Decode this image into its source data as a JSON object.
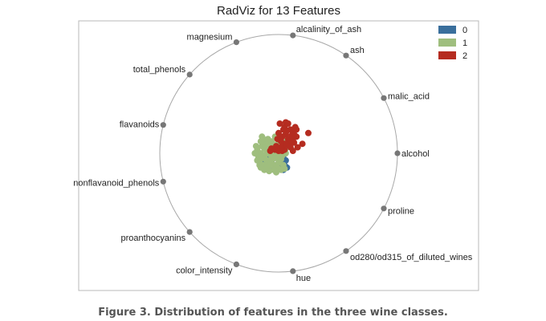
{
  "chart_data": {
    "type": "scatter",
    "title": "RadViz for 13 Features",
    "xlim": [
      -1,
      1
    ],
    "ylim": [
      -1,
      1
    ],
    "grid": false,
    "legend_placement": "top-right",
    "anchors": [
      {
        "label": "alcohol",
        "angle_deg": 0
      },
      {
        "label": "malic_acid",
        "angle_deg": 27.7
      },
      {
        "label": "ash",
        "angle_deg": 55.4
      },
      {
        "label": "alcalinity_of_ash",
        "angle_deg": 83.1
      },
      {
        "label": "magnesium",
        "angle_deg": 110.8
      },
      {
        "label": "total_phenols",
        "angle_deg": 138.5
      },
      {
        "label": "flavanoids",
        "angle_deg": 166.2
      },
      {
        "label": "nonflavanoid_phenols",
        "angle_deg": 193.8
      },
      {
        "label": "proanthocyanins",
        "angle_deg": 221.5
      },
      {
        "label": "color_intensity",
        "angle_deg": 249.2
      },
      {
        "label": "hue",
        "angle_deg": 276.9
      },
      {
        "label": "od280/od315_of_diluted_wines",
        "angle_deg": 304.6
      },
      {
        "label": "proline",
        "angle_deg": 332.3
      }
    ],
    "series": [
      {
        "name": "0",
        "color": "#3a6f9c",
        "points": [
          [
            -0.1,
            -0.05
          ],
          [
            -0.06,
            -0.08
          ],
          [
            -0.02,
            -0.1
          ],
          [
            0.02,
            -0.12
          ],
          [
            0.03,
            -0.08
          ],
          [
            0.06,
            -0.06
          ],
          [
            0.05,
            -0.1
          ],
          [
            -0.04,
            -0.12
          ],
          [
            -0.08,
            -0.02
          ],
          [
            -0.12,
            -0.06
          ],
          [
            0.0,
            -0.05
          ],
          [
            0.04,
            -0.02
          ],
          [
            -0.02,
            -0.02
          ],
          [
            0.02,
            0.02
          ],
          [
            -0.06,
            0.0
          ],
          [
            0.04,
            -0.14
          ],
          [
            0.07,
            -0.12
          ],
          [
            -0.11,
            -0.1
          ],
          [
            0.05,
            0.05
          ],
          [
            0.01,
            -0.07
          ]
        ]
      },
      {
        "name": "1",
        "color": "#9fbe7e",
        "points": [
          [
            -0.18,
            0.03
          ],
          [
            -0.15,
            0.0
          ],
          [
            -0.16,
            -0.07
          ],
          [
            -0.14,
            0.06
          ],
          [
            -0.12,
            -0.02
          ],
          [
            -0.13,
            -0.1
          ],
          [
            -0.1,
            0.02
          ],
          [
            -0.09,
            -0.08
          ],
          [
            -0.07,
            0.05
          ],
          [
            -0.05,
            -0.05
          ],
          [
            -0.04,
            -0.1
          ],
          [
            -0.02,
            0.04
          ],
          [
            0.0,
            -0.08
          ],
          [
            0.02,
            -0.05
          ],
          [
            0.03,
            0.08
          ],
          [
            -0.08,
            0.08
          ],
          [
            -0.11,
            0.1
          ],
          [
            -0.03,
            0.02
          ],
          [
            -0.06,
            -0.03
          ],
          [
            0.0,
            0.0
          ],
          [
            -0.17,
            -0.03
          ],
          [
            -0.15,
            0.1
          ],
          [
            0.01,
            0.05
          ],
          [
            -0.01,
            -0.12
          ],
          [
            -0.04,
            -0.14
          ],
          [
            -0.19,
            0.06
          ],
          [
            -0.1,
            -0.12
          ],
          [
            0.04,
            -0.1
          ],
          [
            0.06,
            0.0
          ],
          [
            -0.12,
            0.04
          ],
          [
            -0.07,
            -0.06
          ],
          [
            -0.05,
            0.08
          ],
          [
            -0.03,
            -0.04
          ],
          [
            -0.14,
            -0.04
          ],
          [
            -0.09,
            0.0
          ],
          [
            0.02,
            0.1
          ],
          [
            -0.16,
            -0.1
          ],
          [
            -0.08,
            -0.15
          ],
          [
            0.05,
            -0.13
          ],
          [
            -0.02,
            0.07
          ],
          [
            -0.06,
            0.1
          ],
          [
            -0.13,
            0.12
          ],
          [
            -0.01,
            -0.03
          ],
          [
            0.03,
            -0.02
          ],
          [
            -0.11,
            -0.05
          ],
          [
            -0.04,
            -0.01
          ],
          [
            -0.07,
            -0.1
          ],
          [
            -0.18,
            -0.06
          ],
          [
            0.0,
            0.12
          ],
          [
            -0.15,
            -0.12
          ],
          [
            -0.09,
            0.12
          ],
          [
            0.02,
            -0.14
          ],
          [
            -0.03,
            0.14
          ],
          [
            -0.12,
            -0.14
          ],
          [
            0.06,
            0.04
          ],
          [
            -0.05,
            0.03
          ],
          [
            -0.1,
            0.06
          ],
          [
            -0.2,
            0.0
          ],
          [
            -0.14,
            0.14
          ],
          [
            0.04,
            0.12
          ],
          [
            -0.02,
            -0.16
          ],
          [
            -0.08,
            0.03
          ]
        ]
      },
      {
        "name": "2",
        "color": "#b52c20",
        "points": [
          [
            0.01,
            0.25
          ],
          [
            0.05,
            0.22
          ],
          [
            0.08,
            0.25
          ],
          [
            0.1,
            0.2
          ],
          [
            0.12,
            0.18
          ],
          [
            0.14,
            0.22
          ],
          [
            0.06,
            0.16
          ],
          [
            0.03,
            0.14
          ],
          [
            0.0,
            0.17
          ],
          [
            0.08,
            0.12
          ],
          [
            0.12,
            0.12
          ],
          [
            0.15,
            0.14
          ],
          [
            0.05,
            0.08
          ],
          [
            0.02,
            0.05
          ],
          [
            -0.03,
            0.03
          ],
          [
            -0.06,
            0.04
          ],
          [
            0.02,
            0.1
          ],
          [
            0.05,
            0.03
          ],
          [
            0.16,
            0.05
          ],
          [
            0.25,
            0.17
          ],
          [
            0.2,
            0.08
          ],
          [
            -0.01,
            0.12
          ],
          [
            0.07,
            0.19
          ],
          [
            0.1,
            0.05
          ],
          [
            0.12,
            0.02
          ],
          [
            -0.07,
            0.02
          ],
          [
            0.0,
            0.02
          ],
          [
            0.04,
            0.2
          ],
          [
            0.13,
            0.16
          ],
          [
            0.09,
            0.08
          ],
          [
            0.11,
            0.15
          ],
          [
            0.03,
            0.02
          ],
          [
            -0.02,
            0.06
          ],
          [
            0.07,
            0.07
          ],
          [
            0.15,
            0.2
          ],
          [
            0.06,
            0.26
          ],
          [
            0.13,
            0.09
          ]
        ]
      }
    ]
  },
  "legend": [
    {
      "label": "0",
      "color": "#3a6f9c"
    },
    {
      "label": "1",
      "color": "#9fbe7e"
    },
    {
      "label": "2",
      "color": "#b52c20"
    }
  ],
  "caption": "Figure 3. Distribution of features in the three wine classes."
}
